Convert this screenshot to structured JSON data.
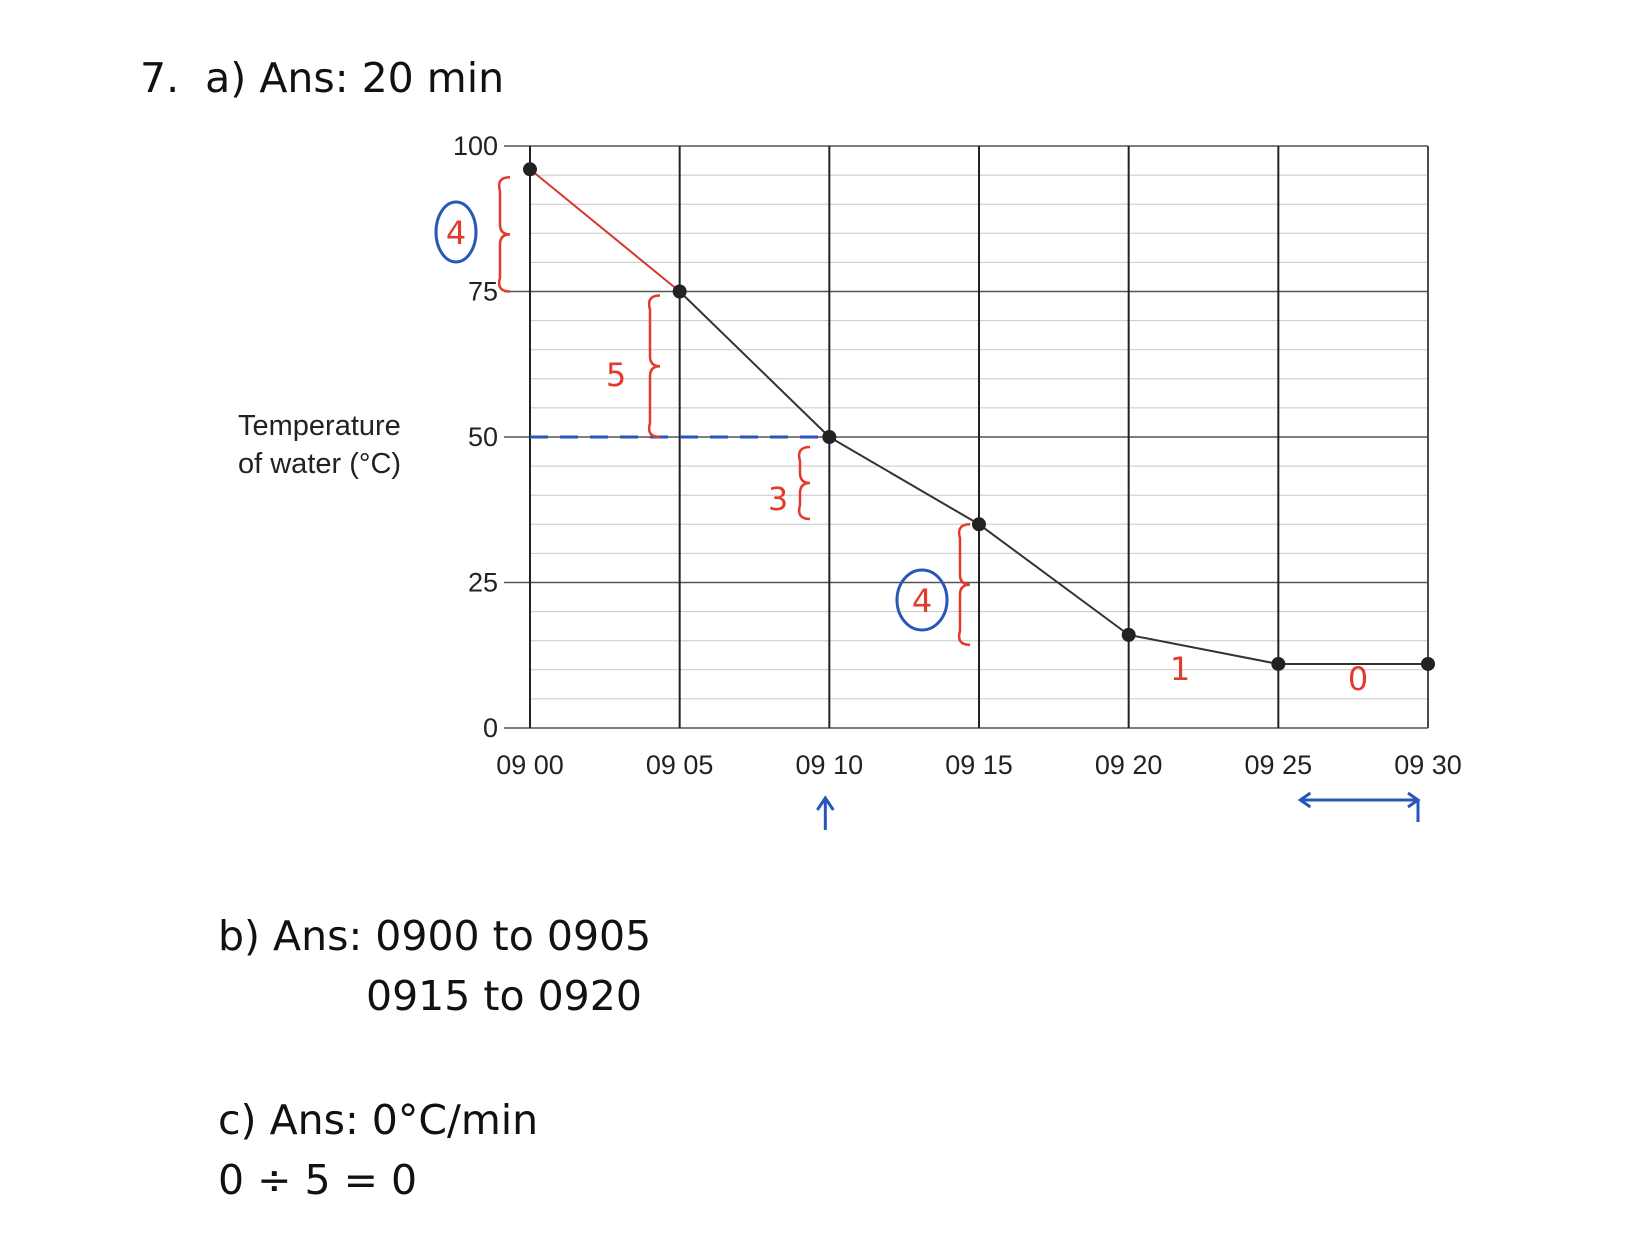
{
  "answers": {
    "a": "7.  a) Ans: 20 min",
    "b_line1": "b) Ans: 0900 to 0905",
    "b_line2": "0915 to 0920",
    "c_line1": "c) Ans: 0°C/min",
    "c_line2": "0 ÷ 5 = 0"
  },
  "chart_data": {
    "type": "line",
    "title": "",
    "ylabel": "Temperature\nof water (°C)",
    "xlabel": "",
    "x": [
      "09 00",
      "09 05",
      "09 10",
      "09 15",
      "09 20",
      "09 25",
      "09 30"
    ],
    "series": [
      {
        "values": [
          96,
          75,
          50,
          35,
          16,
          11,
          11
        ]
      }
    ],
    "yticks": [
      0,
      25,
      50,
      75,
      100
    ],
    "ylim": [
      0,
      100
    ],
    "grid": true,
    "annotations": [
      {
        "text": "4",
        "between": [
          "09 00",
          "09 05"
        ],
        "color": "red",
        "circled": true
      },
      {
        "text": "5",
        "between": [
          "09 05",
          "09 10"
        ],
        "color": "red",
        "circled": false
      },
      {
        "text": "3",
        "between": [
          "09 10",
          "09 15"
        ],
        "color": "red",
        "circled": false
      },
      {
        "text": "4",
        "between": [
          "09 15",
          "09 20"
        ],
        "color": "red",
        "circled": true
      },
      {
        "text": "1",
        "between": [
          "09 20",
          "09 25"
        ],
        "color": "red",
        "circled": false
      },
      {
        "text": "0",
        "between": [
          "09 25",
          "09 30"
        ],
        "color": "red",
        "circled": false
      }
    ],
    "guide_line_y": 50,
    "arrow_at": "09 10",
    "range_arrow": [
      "09 25",
      "09 30"
    ],
    "colors": {
      "line": "#333333",
      "first_segment": "#d23a2c",
      "hand_red": "#e23a2c",
      "hand_blue": "#2a56b8"
    }
  }
}
